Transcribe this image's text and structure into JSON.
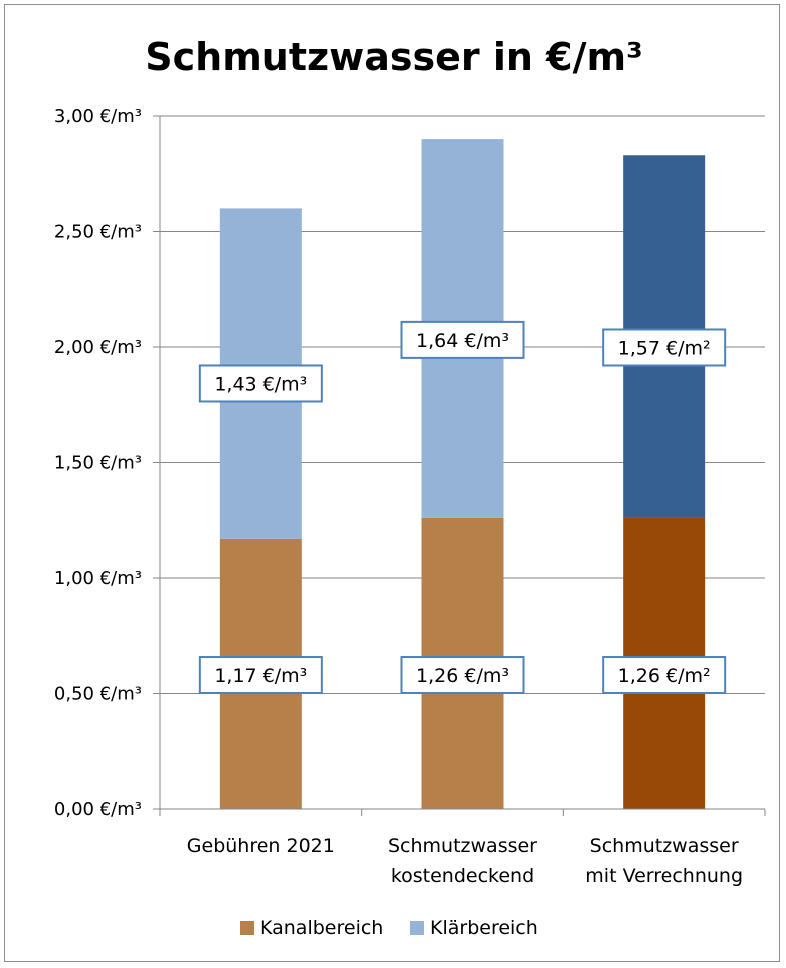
{
  "chart_data": {
    "type": "bar",
    "stacked": true,
    "title": "Schmutzwasser in €/m³",
    "xlabel": "",
    "ylabel": "",
    "ylim": [
      0,
      3
    ],
    "grid": true,
    "legend_position": "bottom",
    "y_ticks": [
      0,
      0.5,
      1,
      1.5,
      2,
      2.5,
      3
    ],
    "y_tick_labels": [
      "0,00 €/m³",
      "0,50 €/m³",
      "1,00 €/m³",
      "1,50 €/m³",
      "2,00 €/m³",
      "2,50 €/m³",
      "3,00 €/m³"
    ],
    "categories": [
      [
        "Gebühren 2021"
      ],
      [
        "Schmutzwasser",
        "kostendeckend"
      ],
      [
        "Schmutzwasser",
        "mit Verrechnung"
      ]
    ],
    "series": [
      {
        "name": "Kanalbereich",
        "color": "#b5804a",
        "values": [
          1.17,
          1.26,
          1.26
        ],
        "point_colors": [
          "#b5804a",
          "#b5804a",
          "#984807"
        ],
        "data_labels": [
          "1,17 €/m³",
          "1,26 €/m³",
          "1,26 €/m²"
        ]
      },
      {
        "name": "Klärbereich",
        "color": "#95b3d7",
        "values": [
          1.43,
          1.64,
          1.57
        ],
        "point_colors": [
          "#95b3d7",
          "#95b3d7",
          "#366092"
        ],
        "data_labels": [
          "1,43 €/m³",
          "1,64 €/m³",
          "1,57 €/m²"
        ]
      }
    ],
    "axis_color": "#868686",
    "grid_color": "#868686",
    "label_border_color": "#4f81bd"
  }
}
